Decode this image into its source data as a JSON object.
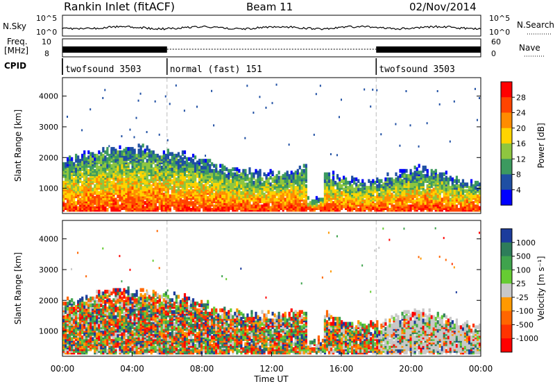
{
  "header": {
    "title": "Rankin Inlet (fitACF)",
    "beam": "Beam 11",
    "date": "02/Nov/2014"
  },
  "strips": {
    "nsky_label": "N.Sky",
    "nsky_ticks": [
      "10^5",
      "10^0"
    ],
    "nsearch_label": "N.Search",
    "nsearch_ticks": [
      "10^5",
      "10^0"
    ],
    "freq_label_1": "Freq.",
    "freq_label_2": "[MHz]",
    "freq_ticks": [
      "10",
      "8"
    ],
    "nave_label": "Nave",
    "nave_ticks": [
      "60",
      "0"
    ],
    "cpid_label": "CPID",
    "cpid_segments": [
      {
        "start": 0,
        "end": 6,
        "label": "twofsound 3503"
      },
      {
        "start": 6,
        "end": 18,
        "label": "normal (fast) 151"
      },
      {
        "start": 18,
        "end": 24,
        "label": "twofsound 3503"
      }
    ]
  },
  "chart_data": [
    {
      "type": "heatmap",
      "panel": "power",
      "ylabel": "Slant Range [km]",
      "xlabel": "",
      "ylim": [
        180,
        4600
      ],
      "xlim": [
        0,
        24
      ],
      "yticks": [
        1000,
        2000,
        3000,
        4000
      ],
      "colorbar_label": "Power [dB]",
      "colorbar_ticks": [
        "28",
        "24",
        "20",
        "16",
        "12",
        "8",
        "4"
      ],
      "colorbar_colors": [
        "#ff0000",
        "#ff4400",
        "#ff8c00",
        "#ffd400",
        "#8ec63f",
        "#3c9a5f",
        "#1f4fa3",
        "#0000ff"
      ],
      "dashed_lines_x": [
        6,
        18
      ]
    },
    {
      "type": "heatmap",
      "panel": "velocity",
      "ylabel": "Slant Range [km]",
      "xlabel": "Time UT",
      "ylim": [
        180,
        4600
      ],
      "xlim": [
        0,
        24
      ],
      "yticks": [
        1000,
        2000,
        3000,
        4000
      ],
      "xticks": [
        "00:00",
        "04:00",
        "08:00",
        "12:00",
        "16:00",
        "20:00",
        "00:00"
      ],
      "colorbar_label": "Velocity [m s⁻¹]",
      "colorbar_ticks": [
        "1000",
        "500",
        "100",
        "25",
        "-25",
        "-100",
        "-500",
        "-1000"
      ],
      "colorbar_colors": [
        "#1c3c9c",
        "#2e7d5a",
        "#3fa34d",
        "#66cc33",
        "#c8c8c8",
        "#ff9900",
        "#ff6600",
        "#ff3300",
        "#ff0000"
      ],
      "dashed_lines_x": [
        6,
        18
      ]
    }
  ]
}
